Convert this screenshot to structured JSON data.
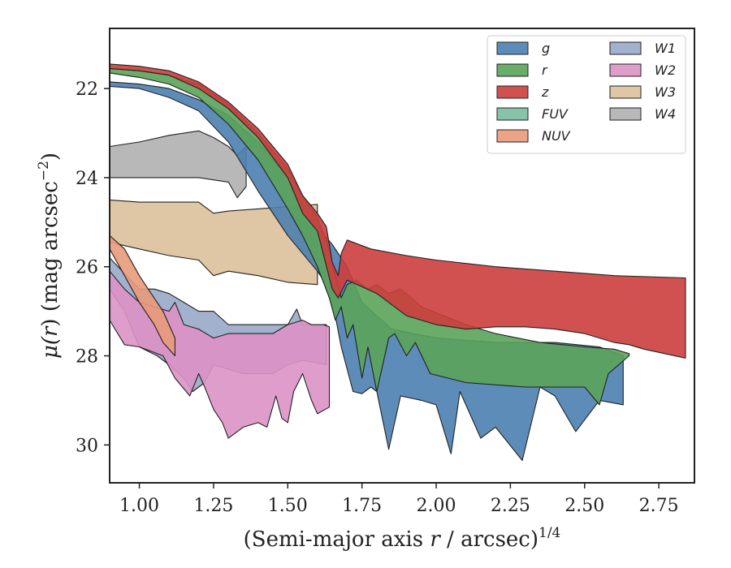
{
  "chart_data": {
    "type": "area",
    "xlabel": "(Semi-major axis r / arcsec)",
    "xlabel_parts": {
      "pre": "(Semi-major axis ",
      "var": "r",
      "post": " / arcsec)",
      "sup": "1/4"
    },
    "ylabel_parts": {
      "mu": "μ(",
      "var": "r",
      "mid": ") (mag arcsec",
      "sup": "−2",
      "end": ")"
    },
    "xlim": [
      0.9,
      2.87
    ],
    "ylim": [
      30.85,
      20.65
    ],
    "y_inverted": true,
    "xticks": [
      1.0,
      1.25,
      1.5,
      1.75,
      2.0,
      2.25,
      2.5,
      2.75
    ],
    "xtick_labels": [
      "1.00",
      "1.25",
      "1.50",
      "1.75",
      "2.00",
      "2.25",
      "2.50",
      "2.75"
    ],
    "yticks": [
      22,
      24,
      26,
      28,
      30
    ],
    "ytick_labels": [
      "22",
      "24",
      "26",
      "28",
      "30"
    ],
    "grid": false,
    "legend": {
      "placement": "top-right",
      "columns": 2
    },
    "series": [
      {
        "name": "g",
        "color": "#4c7fb0",
        "upper": [
          [
            0.9,
            21.85
          ],
          [
            1.0,
            21.9
          ],
          [
            1.1,
            22.0
          ],
          [
            1.2,
            22.25
          ],
          [
            1.3,
            22.6
          ],
          [
            1.4,
            23.2
          ],
          [
            1.5,
            24.0
          ],
          [
            1.55,
            24.6
          ],
          [
            1.6,
            25.1
          ],
          [
            1.65,
            25.5
          ],
          [
            1.7,
            26.0
          ],
          [
            1.75,
            26.8
          ],
          [
            1.85,
            27.4
          ],
          [
            2.0,
            27.6
          ],
          [
            2.2,
            27.7
          ],
          [
            2.4,
            27.7
          ],
          [
            2.55,
            27.8
          ],
          [
            2.63,
            28.0
          ]
        ],
        "lower": [
          [
            2.63,
            29.1
          ],
          [
            2.55,
            29.0
          ],
          [
            2.47,
            29.7
          ],
          [
            2.4,
            28.9
          ],
          [
            2.35,
            28.7
          ],
          [
            2.29,
            30.35
          ],
          [
            2.2,
            29.6
          ],
          [
            2.15,
            29.85
          ],
          [
            2.08,
            28.8
          ],
          [
            2.05,
            30.2
          ],
          [
            2.0,
            29.1
          ],
          [
            1.95,
            29.0
          ],
          [
            1.88,
            28.9
          ],
          [
            1.84,
            30.1
          ],
          [
            1.8,
            28.8
          ],
          [
            1.78,
            28.7
          ],
          [
            1.75,
            28.85
          ],
          [
            1.72,
            28.8
          ],
          [
            1.68,
            27.8
          ],
          [
            1.66,
            27.1
          ],
          [
            1.62,
            26.3
          ],
          [
            1.6,
            26.1
          ],
          [
            1.5,
            25.3
          ],
          [
            1.4,
            24.3
          ],
          [
            1.3,
            23.2
          ],
          [
            1.2,
            22.5
          ],
          [
            1.1,
            22.2
          ],
          [
            1.0,
            22.0
          ],
          [
            0.9,
            21.95
          ]
        ]
      },
      {
        "name": "r",
        "color": "#5aa35a",
        "upper": [
          [
            0.9,
            21.55
          ],
          [
            1.0,
            21.6
          ],
          [
            1.1,
            21.7
          ],
          [
            1.2,
            21.9
          ],
          [
            1.3,
            22.35
          ],
          [
            1.4,
            23.0
          ],
          [
            1.5,
            23.8
          ],
          [
            1.55,
            24.4
          ],
          [
            1.6,
            24.9
          ],
          [
            1.63,
            25.4
          ],
          [
            1.66,
            26.2
          ],
          [
            1.68,
            26.7
          ],
          [
            1.7,
            26.4
          ],
          [
            1.73,
            26.3
          ],
          [
            1.77,
            26.5
          ],
          [
            1.8,
            26.4
          ],
          [
            1.84,
            26.6
          ],
          [
            1.88,
            26.5
          ],
          [
            1.95,
            26.9
          ],
          [
            2.1,
            27.3
          ],
          [
            2.2,
            27.5
          ],
          [
            2.35,
            27.7
          ],
          [
            2.5,
            27.8
          ],
          [
            2.6,
            27.85
          ],
          [
            2.65,
            27.95
          ]
        ],
        "lower": [
          [
            2.65,
            28.0
          ],
          [
            2.58,
            28.4
          ],
          [
            2.55,
            29.1
          ],
          [
            2.5,
            28.7
          ],
          [
            2.3,
            28.7
          ],
          [
            2.1,
            28.6
          ],
          [
            1.98,
            28.4
          ],
          [
            1.93,
            27.7
          ],
          [
            1.9,
            28.0
          ],
          [
            1.86,
            27.5
          ],
          [
            1.84,
            27.6
          ],
          [
            1.8,
            28.8
          ],
          [
            1.77,
            27.8
          ],
          [
            1.75,
            28.5
          ],
          [
            1.72,
            27.3
          ],
          [
            1.7,
            27.6
          ],
          [
            1.68,
            26.9
          ],
          [
            1.66,
            27.2
          ],
          [
            1.64,
            26.7
          ],
          [
            1.6,
            26.0
          ],
          [
            1.55,
            25.3
          ],
          [
            1.5,
            24.7
          ],
          [
            1.4,
            23.6
          ],
          [
            1.3,
            22.8
          ],
          [
            1.2,
            22.2
          ],
          [
            1.1,
            21.9
          ],
          [
            1.0,
            21.75
          ],
          [
            0.9,
            21.65
          ]
        ]
      },
      {
        "name": "z",
        "color": "#cc3d3d",
        "upper": [
          [
            0.9,
            21.45
          ],
          [
            1.0,
            21.5
          ],
          [
            1.1,
            21.6
          ],
          [
            1.2,
            21.85
          ],
          [
            1.3,
            22.3
          ],
          [
            1.4,
            22.9
          ],
          [
            1.45,
            23.3
          ],
          [
            1.5,
            23.7
          ],
          [
            1.55,
            24.4
          ],
          [
            1.6,
            24.8
          ],
          [
            1.63,
            25.1
          ],
          [
            1.65,
            25.9
          ],
          [
            1.67,
            26.2
          ],
          [
            1.68,
            25.7
          ],
          [
            1.7,
            25.4
          ],
          [
            1.78,
            25.6
          ],
          [
            1.9,
            25.75
          ],
          [
            2.0,
            25.85
          ],
          [
            2.2,
            26.0
          ],
          [
            2.4,
            26.1
          ],
          [
            2.6,
            26.2
          ],
          [
            2.84,
            26.25
          ]
        ],
        "lower": [
          [
            2.84,
            28.05
          ],
          [
            2.7,
            27.85
          ],
          [
            2.65,
            27.75
          ],
          [
            2.6,
            27.7
          ],
          [
            2.5,
            27.5
          ],
          [
            2.4,
            27.4
          ],
          [
            2.3,
            27.35
          ],
          [
            2.2,
            27.35
          ],
          [
            2.1,
            27.4
          ],
          [
            2.0,
            27.3
          ],
          [
            1.9,
            27.1
          ],
          [
            1.8,
            26.6
          ],
          [
            1.75,
            26.45
          ],
          [
            1.7,
            26.3
          ],
          [
            1.67,
            26.7
          ],
          [
            1.65,
            26.5
          ],
          [
            1.6,
            25.2
          ],
          [
            1.55,
            24.8
          ],
          [
            1.5,
            24.0
          ],
          [
            1.4,
            23.1
          ],
          [
            1.3,
            22.45
          ],
          [
            1.2,
            22.0
          ],
          [
            1.1,
            21.7
          ],
          [
            1.0,
            21.6
          ],
          [
            0.9,
            21.55
          ]
        ]
      },
      {
        "name": "FUV",
        "color": "#7bbda0",
        "upper": [],
        "lower": []
      },
      {
        "name": "NUV",
        "color": "#e99a7a",
        "upper": [
          [
            0.9,
            25.3
          ],
          [
            0.95,
            25.6
          ],
          [
            1.0,
            26.2
          ],
          [
            1.05,
            26.7
          ],
          [
            1.08,
            27.0
          ],
          [
            1.1,
            27.3
          ],
          [
            1.12,
            27.6
          ]
        ],
        "lower": [
          [
            1.12,
            28.0
          ],
          [
            1.08,
            27.7
          ],
          [
            1.05,
            27.3
          ],
          [
            1.0,
            26.8
          ],
          [
            0.95,
            26.2
          ],
          [
            0.9,
            25.6
          ]
        ]
      },
      {
        "name": "W1",
        "color": "#98a9c9",
        "upper": [
          [
            0.9,
            25.8
          ],
          [
            0.95,
            26.15
          ],
          [
            1.0,
            26.5
          ],
          [
            1.05,
            26.5
          ],
          [
            1.1,
            26.6
          ],
          [
            1.15,
            26.8
          ],
          [
            1.2,
            27.0
          ],
          [
            1.25,
            27.0
          ],
          [
            1.3,
            27.3
          ],
          [
            1.35,
            27.3
          ],
          [
            1.4,
            27.3
          ],
          [
            1.45,
            27.3
          ],
          [
            1.5,
            27.3
          ],
          [
            1.53,
            26.95
          ],
          [
            1.55,
            27.3
          ],
          [
            1.6,
            27.3
          ],
          [
            1.63,
            27.3
          ]
        ],
        "lower": [
          [
            1.63,
            28.2
          ],
          [
            1.55,
            28.1
          ],
          [
            1.5,
            28.2
          ],
          [
            1.45,
            28.4
          ],
          [
            1.4,
            28.4
          ],
          [
            1.35,
            28.4
          ],
          [
            1.3,
            28.3
          ],
          [
            1.25,
            28.2
          ],
          [
            1.22,
            28.6
          ],
          [
            1.18,
            28.8
          ],
          [
            1.15,
            28.5
          ],
          [
            1.1,
            28.2
          ],
          [
            1.06,
            28.0
          ],
          [
            1.0,
            27.8
          ],
          [
            0.95,
            27.0
          ],
          [
            0.9,
            26.5
          ]
        ]
      },
      {
        "name": "W2",
        "color": "#dc92c5",
        "upper": [
          [
            0.9,
            26.1
          ],
          [
            0.95,
            26.5
          ],
          [
            1.0,
            26.8
          ],
          [
            1.05,
            26.9
          ],
          [
            1.1,
            27.0
          ],
          [
            1.12,
            26.8
          ],
          [
            1.15,
            27.3
          ],
          [
            1.2,
            27.4
          ],
          [
            1.25,
            27.6
          ],
          [
            1.3,
            27.5
          ],
          [
            1.35,
            27.5
          ],
          [
            1.4,
            27.5
          ],
          [
            1.45,
            27.5
          ],
          [
            1.5,
            27.3
          ],
          [
            1.55,
            27.2
          ],
          [
            1.58,
            27.3
          ],
          [
            1.62,
            27.3
          ],
          [
            1.64,
            27.35
          ]
        ],
        "lower": [
          [
            1.64,
            29.15
          ],
          [
            1.6,
            29.3
          ],
          [
            1.58,
            29.0
          ],
          [
            1.55,
            28.4
          ],
          [
            1.52,
            28.8
          ],
          [
            1.5,
            29.5
          ],
          [
            1.48,
            29.4
          ],
          [
            1.46,
            28.9
          ],
          [
            1.43,
            29.6
          ],
          [
            1.4,
            29.5
          ],
          [
            1.35,
            29.6
          ],
          [
            1.3,
            29.85
          ],
          [
            1.28,
            29.5
          ],
          [
            1.25,
            29.2
          ],
          [
            1.22,
            28.7
          ],
          [
            1.2,
            28.4
          ],
          [
            1.17,
            28.9
          ],
          [
            1.12,
            28.5
          ],
          [
            1.08,
            28.0
          ],
          [
            1.0,
            27.8
          ],
          [
            0.95,
            27.75
          ],
          [
            0.9,
            27.2
          ]
        ]
      },
      {
        "name": "W3",
        "color": "#dcc09b",
        "upper": [
          [
            0.9,
            24.5
          ],
          [
            1.0,
            24.55
          ],
          [
            1.1,
            24.55
          ],
          [
            1.2,
            24.55
          ],
          [
            1.25,
            24.8
          ],
          [
            1.3,
            24.75
          ],
          [
            1.4,
            24.7
          ],
          [
            1.5,
            24.65
          ],
          [
            1.6,
            24.6
          ]
        ],
        "lower": [
          [
            1.6,
            26.4
          ],
          [
            1.5,
            26.35
          ],
          [
            1.4,
            26.2
          ],
          [
            1.3,
            26.1
          ],
          [
            1.25,
            26.2
          ],
          [
            1.2,
            25.85
          ],
          [
            1.1,
            25.75
          ],
          [
            1.0,
            25.6
          ],
          [
            0.9,
            25.45
          ]
        ]
      },
      {
        "name": "W4",
        "color": "#b0b0b0",
        "upper": [
          [
            0.9,
            23.3
          ],
          [
            1.0,
            23.2
          ],
          [
            1.1,
            23.05
          ],
          [
            1.2,
            22.95
          ],
          [
            1.25,
            23.1
          ],
          [
            1.3,
            23.3
          ],
          [
            1.33,
            23.5
          ],
          [
            1.36,
            23.3
          ]
        ],
        "lower": [
          [
            1.36,
            24.2
          ],
          [
            1.33,
            24.45
          ],
          [
            1.3,
            24.1
          ],
          [
            1.25,
            24.05
          ],
          [
            1.2,
            24.0
          ],
          [
            1.1,
            24.0
          ],
          [
            1.0,
            24.0
          ],
          [
            0.9,
            24.0
          ]
        ]
      }
    ],
    "plot_order": [
      "W4",
      "W3",
      "g",
      "r",
      "z",
      "W1",
      "W2",
      "NUV"
    ]
  }
}
